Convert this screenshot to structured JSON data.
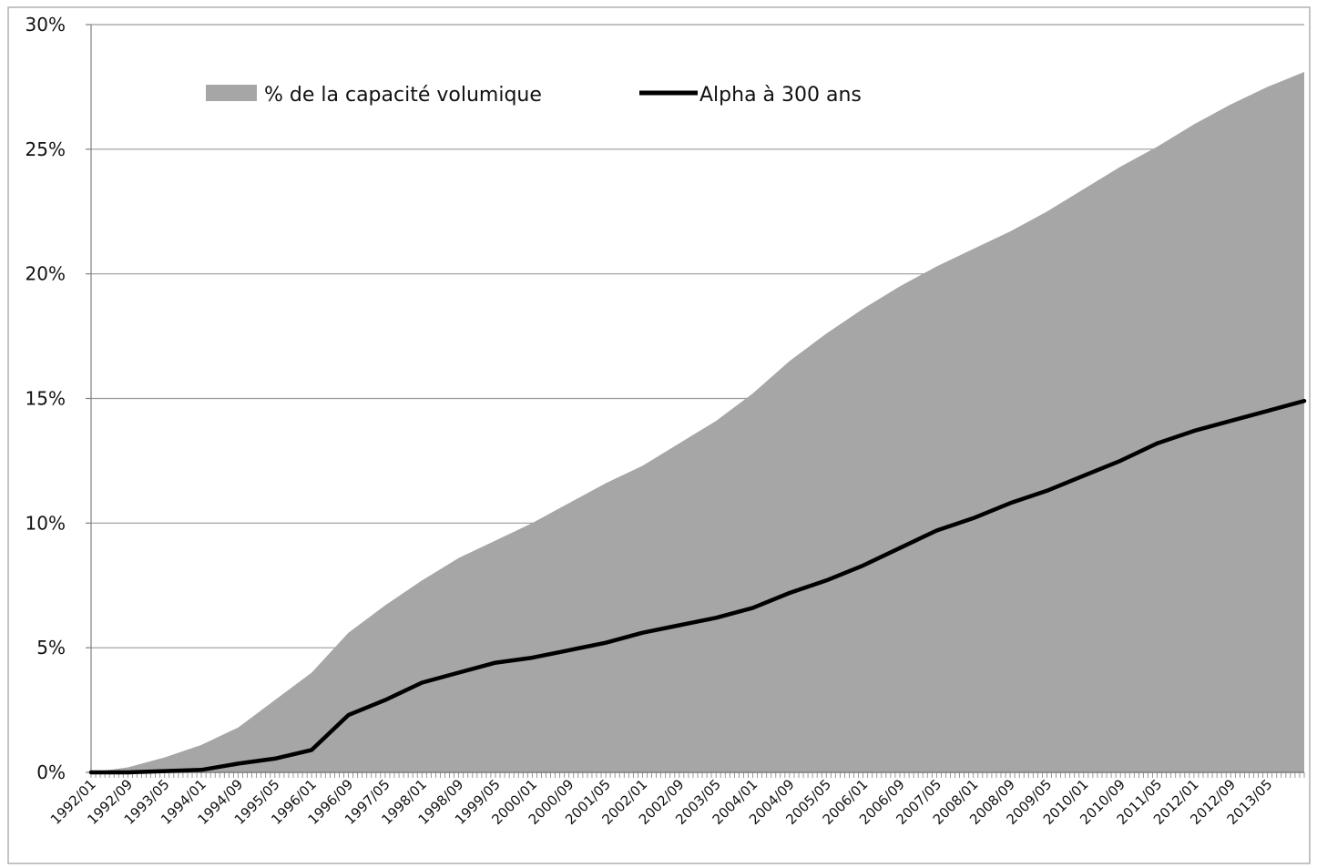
{
  "chart_data": {
    "type": "area",
    "title": "",
    "xlabel": "",
    "ylabel": "",
    "ylim": [
      0,
      30
    ],
    "y_ticks": [
      "0%",
      "5%",
      "10%",
      "15%",
      "20%",
      "25%",
      "30%"
    ],
    "y_tick_values": [
      0,
      5,
      10,
      15,
      20,
      25,
      30
    ],
    "x_start": "1992/01",
    "x_end": "2014/01",
    "x_ticks": [
      "1992/01",
      "1992/09",
      "1993/05",
      "1994/01",
      "1994/09",
      "1995/05",
      "1996/01",
      "1996/09",
      "1997/05",
      "1998/01",
      "1998/09",
      "1999/05",
      "2000/01",
      "2000/09",
      "2001/05",
      "2002/01",
      "2002/09",
      "2003/05",
      "2004/01",
      "2004/09",
      "2005/05",
      "2006/01",
      "2006/09",
      "2007/05",
      "2008/01",
      "2008/09",
      "2009/05",
      "2010/01",
      "2010/09",
      "2011/05",
      "2012/01",
      "2012/09",
      "2013/05"
    ],
    "grid": true,
    "legend_position": "top-left",
    "series": [
      {
        "name": "% de la capacité volumique",
        "kind": "area",
        "color": "#a6a6a6",
        "points": [
          [
            "1992/01",
            0.0
          ],
          [
            "1992/09",
            0.2
          ],
          [
            "1993/05",
            0.6
          ],
          [
            "1994/01",
            1.1
          ],
          [
            "1994/09",
            1.8
          ],
          [
            "1995/05",
            2.9
          ],
          [
            "1996/01",
            4.0
          ],
          [
            "1996/09",
            5.6
          ],
          [
            "1997/05",
            6.7
          ],
          [
            "1998/01",
            7.7
          ],
          [
            "1998/09",
            8.6
          ],
          [
            "1999/05",
            9.3
          ],
          [
            "2000/01",
            10.0
          ],
          [
            "2000/09",
            10.8
          ],
          [
            "2001/05",
            11.6
          ],
          [
            "2002/01",
            12.3
          ],
          [
            "2002/09",
            13.2
          ],
          [
            "2003/05",
            14.1
          ],
          [
            "2004/01",
            15.2
          ],
          [
            "2004/09",
            16.5
          ],
          [
            "2005/05",
            17.6
          ],
          [
            "2006/01",
            18.6
          ],
          [
            "2006/09",
            19.5
          ],
          [
            "2007/05",
            20.3
          ],
          [
            "2008/01",
            21.0
          ],
          [
            "2008/09",
            21.7
          ],
          [
            "2009/05",
            22.5
          ],
          [
            "2010/01",
            23.4
          ],
          [
            "2010/09",
            24.3
          ],
          [
            "2011/05",
            25.1
          ],
          [
            "2012/01",
            26.0
          ],
          [
            "2012/09",
            26.8
          ],
          [
            "2013/05",
            27.5
          ],
          [
            "2014/01",
            28.1
          ]
        ]
      },
      {
        "name": "Alpha à 300 ans",
        "kind": "line",
        "color": "#000000",
        "points": [
          [
            "1992/01",
            0.0
          ],
          [
            "1992/09",
            0.0
          ],
          [
            "1993/05",
            0.05
          ],
          [
            "1994/01",
            0.1
          ],
          [
            "1994/09",
            0.35
          ],
          [
            "1995/05",
            0.55
          ],
          [
            "1996/01",
            0.9
          ],
          [
            "1996/09",
            2.3
          ],
          [
            "1997/05",
            2.9
          ],
          [
            "1998/01",
            3.6
          ],
          [
            "1998/09",
            4.0
          ],
          [
            "1999/05",
            4.4
          ],
          [
            "2000/01",
            4.6
          ],
          [
            "2000/09",
            4.9
          ],
          [
            "2001/05",
            5.2
          ],
          [
            "2002/01",
            5.6
          ],
          [
            "2002/09",
            5.9
          ],
          [
            "2003/05",
            6.2
          ],
          [
            "2004/01",
            6.6
          ],
          [
            "2004/09",
            7.2
          ],
          [
            "2005/05",
            7.7
          ],
          [
            "2006/01",
            8.3
          ],
          [
            "2006/09",
            9.0
          ],
          [
            "2007/05",
            9.7
          ],
          [
            "2008/01",
            10.2
          ],
          [
            "2008/09",
            10.8
          ],
          [
            "2009/05",
            11.3
          ],
          [
            "2010/01",
            11.9
          ],
          [
            "2010/09",
            12.5
          ],
          [
            "2011/05",
            13.2
          ],
          [
            "2012/01",
            13.7
          ],
          [
            "2012/09",
            14.1
          ],
          [
            "2013/05",
            14.5
          ],
          [
            "2014/01",
            14.9
          ]
        ]
      }
    ]
  }
}
